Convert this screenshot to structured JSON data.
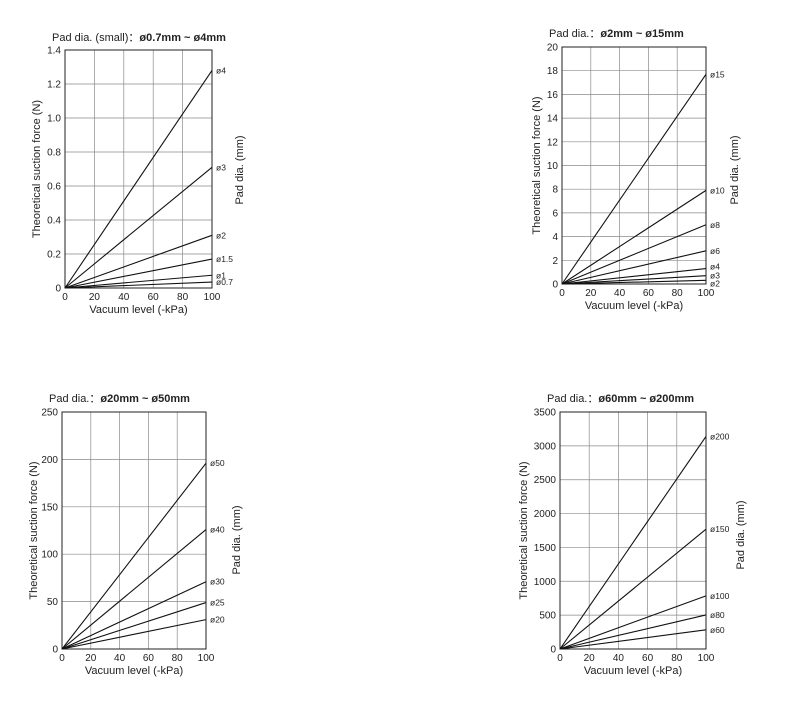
{
  "chart_data": [
    {
      "type": "line",
      "title_prefix": "Pad dia. (small)",
      "title_sep": "：",
      "title_range": "ø0.7mm ~ ø4mm",
      "xlabel": "Vacuum level (-kPa)",
      "ylabel": "Theoretical suction force (N)",
      "right_label": "Pad dia. (mm)",
      "xlim": [
        0,
        100
      ],
      "ylim": [
        0,
        1.4
      ],
      "grid": true,
      "x_ticks": [
        "0",
        "20",
        "40",
        "60",
        "80",
        "100"
      ],
      "y_ticks": [
        "0",
        "0.2",
        "0.4",
        "0.6",
        "0.8",
        "1.0",
        "1.2",
        "1.4"
      ],
      "series": [
        {
          "name": "ø4",
          "x": [
            0,
            100
          ],
          "values": [
            0,
            1.28
          ]
        },
        {
          "name": "ø3",
          "x": [
            0,
            100
          ],
          "values": [
            0,
            0.71
          ]
        },
        {
          "name": "ø2",
          "x": [
            0,
            100
          ],
          "values": [
            0,
            0.31
          ]
        },
        {
          "name": "ø1.5",
          "x": [
            0,
            100
          ],
          "values": [
            0,
            0.17
          ]
        },
        {
          "name": "ø1",
          "x": [
            0,
            100
          ],
          "values": [
            0,
            0.075
          ]
        },
        {
          "name": "ø0.7",
          "x": [
            0,
            100
          ],
          "values": [
            0,
            0.035
          ]
        }
      ]
    },
    {
      "type": "line",
      "title_prefix": "Pad dia.",
      "title_sep": "：",
      "title_range": "ø2mm ~ ø15mm",
      "xlabel": "Vacuum level (-kPa)",
      "ylabel": "Theoretical suction force (N)",
      "right_label": "Pad dia. (mm)",
      "xlim": [
        0,
        100
      ],
      "ylim": [
        0,
        20
      ],
      "grid": true,
      "x_ticks": [
        "0",
        "20",
        "40",
        "60",
        "80",
        "100"
      ],
      "y_ticks": [
        "0",
        "2",
        "4",
        "6",
        "8",
        "10",
        "12",
        "14",
        "16",
        "18",
        "20"
      ],
      "series": [
        {
          "name": "ø15",
          "x": [
            0,
            100
          ],
          "values": [
            0,
            17.7
          ]
        },
        {
          "name": "ø10",
          "x": [
            0,
            100
          ],
          "values": [
            0,
            7.9
          ]
        },
        {
          "name": "ø8",
          "x": [
            0,
            100
          ],
          "values": [
            0,
            5.0
          ]
        },
        {
          "name": "ø6",
          "x": [
            0,
            100
          ],
          "values": [
            0,
            2.8
          ]
        },
        {
          "name": "ø4",
          "x": [
            0,
            100
          ],
          "values": [
            0,
            1.3
          ]
        },
        {
          "name": "ø3",
          "x": [
            0,
            100
          ],
          "values": [
            0,
            0.7
          ]
        },
        {
          "name": "ø2",
          "x": [
            0,
            100
          ],
          "values": [
            0,
            0.31
          ]
        }
      ]
    },
    {
      "type": "line",
      "title_prefix": "Pad dia.",
      "title_sep": "：",
      "title_range": "ø20mm ~ ø50mm",
      "xlabel": "Vacuum level (-kPa)",
      "ylabel": "Theoretical suction force (N)",
      "right_label": "Pad dia. (mm)",
      "xlim": [
        0,
        100
      ],
      "ylim": [
        0,
        250
      ],
      "grid": true,
      "x_ticks": [
        "0",
        "20",
        "40",
        "60",
        "80",
        "100"
      ],
      "y_ticks": [
        "0",
        "50",
        "100",
        "150",
        "200",
        "250"
      ],
      "series": [
        {
          "name": "ø50",
          "x": [
            0,
            100
          ],
          "values": [
            0,
            196
          ]
        },
        {
          "name": "ø40",
          "x": [
            0,
            100
          ],
          "values": [
            0,
            126
          ]
        },
        {
          "name": "ø30",
          "x": [
            0,
            100
          ],
          "values": [
            0,
            71
          ]
        },
        {
          "name": "ø25",
          "x": [
            0,
            100
          ],
          "values": [
            0,
            49
          ]
        },
        {
          "name": "ø20",
          "x": [
            0,
            100
          ],
          "values": [
            0,
            31
          ]
        }
      ]
    },
    {
      "type": "line",
      "title_prefix": "Pad dia.",
      "title_sep": "：",
      "title_range": "ø60mm ~ ø200mm",
      "xlabel": "Vacuum level (-kPa)",
      "ylabel": "Theoretical suction force (N)",
      "right_label": "Pad dia. (mm)",
      "xlim": [
        0,
        100
      ],
      "ylim": [
        0,
        3500
      ],
      "grid": true,
      "x_ticks": [
        "0",
        "20",
        "40",
        "60",
        "80",
        "100"
      ],
      "y_ticks": [
        "0",
        "500",
        "1000",
        "1500",
        "2000",
        "2500",
        "3000",
        "3500"
      ],
      "series": [
        {
          "name": "ø200",
          "x": [
            0,
            100
          ],
          "values": [
            0,
            3140
          ]
        },
        {
          "name": "ø150",
          "x": [
            0,
            100
          ],
          "values": [
            0,
            1770
          ]
        },
        {
          "name": "ø100",
          "x": [
            0,
            100
          ],
          "values": [
            0,
            785
          ]
        },
        {
          "name": "ø80",
          "x": [
            0,
            100
          ],
          "values": [
            0,
            503
          ]
        },
        {
          "name": "ø60",
          "x": [
            0,
            100
          ],
          "values": [
            0,
            283
          ]
        }
      ]
    }
  ]
}
